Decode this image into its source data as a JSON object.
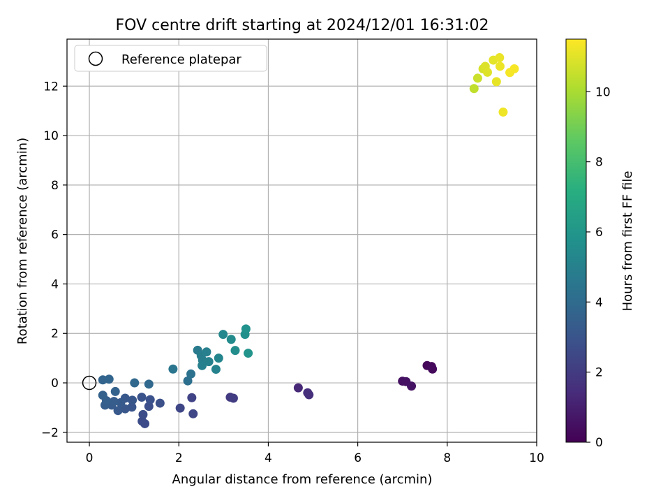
{
  "chart_data": {
    "type": "scatter",
    "title": "FOV centre drift starting at 2024/12/01 16:31:02",
    "xlabel": "Angular distance from reference (arcmin)",
    "ylabel": "Rotation from reference (arcmin)",
    "xlim": [
      -0.5,
      10
    ],
    "ylim": [
      -2.4,
      13.9
    ],
    "xticks": [
      0,
      2,
      4,
      6,
      8,
      10
    ],
    "yticks": [
      -2,
      0,
      2,
      4,
      6,
      8,
      10,
      12
    ],
    "grid": true,
    "legend": {
      "position": "top-left",
      "entries": [
        "Reference platepar"
      ]
    },
    "reference_point": {
      "x": 0,
      "y": 0
    },
    "colorbar": {
      "label": "Hours from first FF file",
      "range": [
        0,
        11.5
      ],
      "ticks": [
        0,
        2,
        4,
        6,
        8,
        10
      ],
      "colormap": "viridis"
    },
    "points": [
      {
        "x": 7.55,
        "y": 0.7,
        "c": 0.2
      },
      {
        "x": 7.65,
        "y": 0.66,
        "c": 0.25
      },
      {
        "x": 7.67,
        "y": 0.56,
        "c": 0.3
      },
      {
        "x": 7.0,
        "y": 0.07,
        "c": 0.5
      },
      {
        "x": 7.08,
        "y": 0.05,
        "c": 0.55
      },
      {
        "x": 7.2,
        "y": -0.13,
        "c": 0.6
      },
      {
        "x": 4.67,
        "y": -0.2,
        "c": 1.3
      },
      {
        "x": 4.88,
        "y": -0.4,
        "c": 1.5
      },
      {
        "x": 4.91,
        "y": -0.48,
        "c": 1.55
      },
      {
        "x": 3.15,
        "y": -0.58,
        "c": 2.0
      },
      {
        "x": 3.22,
        "y": -0.62,
        "c": 2.05
      },
      {
        "x": 2.29,
        "y": -0.6,
        "c": 2.3
      },
      {
        "x": 2.03,
        "y": -1.02,
        "c": 2.4
      },
      {
        "x": 2.32,
        "y": -1.25,
        "c": 2.45
      },
      {
        "x": 1.24,
        "y": -1.65,
        "c": 2.6
      },
      {
        "x": 1.18,
        "y": -1.55,
        "c": 2.65
      },
      {
        "x": 1.2,
        "y": -1.28,
        "c": 2.7
      },
      {
        "x": 1.33,
        "y": -0.95,
        "c": 2.75
      },
      {
        "x": 1.58,
        "y": -0.82,
        "c": 2.8
      },
      {
        "x": 1.36,
        "y": -0.68,
        "c": 2.85
      },
      {
        "x": 1.17,
        "y": -0.58,
        "c": 2.9
      },
      {
        "x": 0.95,
        "y": -0.98,
        "c": 3.0
      },
      {
        "x": 0.96,
        "y": -0.7,
        "c": 3.05
      },
      {
        "x": 0.8,
        "y": -1.05,
        "c": 3.1
      },
      {
        "x": 0.8,
        "y": -0.62,
        "c": 3.15
      },
      {
        "x": 0.64,
        "y": -1.12,
        "c": 3.2
      },
      {
        "x": 0.7,
        "y": -0.8,
        "c": 3.25
      },
      {
        "x": 0.5,
        "y": -0.9,
        "c": 3.3
      },
      {
        "x": 0.55,
        "y": -0.75,
        "c": 3.35
      },
      {
        "x": 0.35,
        "y": -0.9,
        "c": 3.4
      },
      {
        "x": 0.38,
        "y": -0.72,
        "c": 3.45
      },
      {
        "x": 0.3,
        "y": -0.5,
        "c": 3.5
      },
      {
        "x": 0.58,
        "y": -0.35,
        "c": 3.6
      },
      {
        "x": 0.3,
        "y": 0.12,
        "c": 3.7
      },
      {
        "x": 0.44,
        "y": 0.15,
        "c": 3.75
      },
      {
        "x": 1.01,
        "y": 0.0,
        "c": 3.85
      },
      {
        "x": 1.33,
        "y": -0.05,
        "c": 3.9
      },
      {
        "x": 2.2,
        "y": 0.08,
        "c": 4.2
      },
      {
        "x": 2.27,
        "y": 0.36,
        "c": 4.3
      },
      {
        "x": 1.87,
        "y": 0.56,
        "c": 4.5
      },
      {
        "x": 2.42,
        "y": 1.32,
        "c": 4.7
      },
      {
        "x": 2.5,
        "y": 1.1,
        "c": 4.8
      },
      {
        "x": 2.53,
        "y": 0.92,
        "c": 4.85
      },
      {
        "x": 2.62,
        "y": 1.25,
        "c": 4.9
      },
      {
        "x": 2.52,
        "y": 0.7,
        "c": 4.95
      },
      {
        "x": 2.67,
        "y": 0.86,
        "c": 5.0
      },
      {
        "x": 2.83,
        "y": 0.55,
        "c": 5.1
      },
      {
        "x": 2.89,
        "y": 1.0,
        "c": 5.2
      },
      {
        "x": 2.99,
        "y": 1.96,
        "c": 5.3
      },
      {
        "x": 3.17,
        "y": 1.76,
        "c": 5.45
      },
      {
        "x": 3.26,
        "y": 1.31,
        "c": 5.55
      },
      {
        "x": 3.48,
        "y": 1.96,
        "c": 5.7
      },
      {
        "x": 3.5,
        "y": 2.18,
        "c": 5.8
      },
      {
        "x": 3.55,
        "y": 1.2,
        "c": 5.9
      },
      {
        "x": 8.6,
        "y": 11.9,
        "c": 10.4
      },
      {
        "x": 8.68,
        "y": 12.32,
        "c": 10.6
      },
      {
        "x": 8.8,
        "y": 12.7,
        "c": 10.8
      },
      {
        "x": 8.85,
        "y": 12.8,
        "c": 10.9
      },
      {
        "x": 8.9,
        "y": 12.56,
        "c": 10.95
      },
      {
        "x": 9.03,
        "y": 13.05,
        "c": 11.05
      },
      {
        "x": 9.1,
        "y": 12.18,
        "c": 11.1
      },
      {
        "x": 9.17,
        "y": 13.15,
        "c": 11.15
      },
      {
        "x": 9.18,
        "y": 12.8,
        "c": 11.2
      },
      {
        "x": 9.25,
        "y": 10.95,
        "c": 11.25
      },
      {
        "x": 9.4,
        "y": 12.55,
        "c": 11.35
      },
      {
        "x": 9.5,
        "y": 12.7,
        "c": 11.4
      }
    ]
  }
}
